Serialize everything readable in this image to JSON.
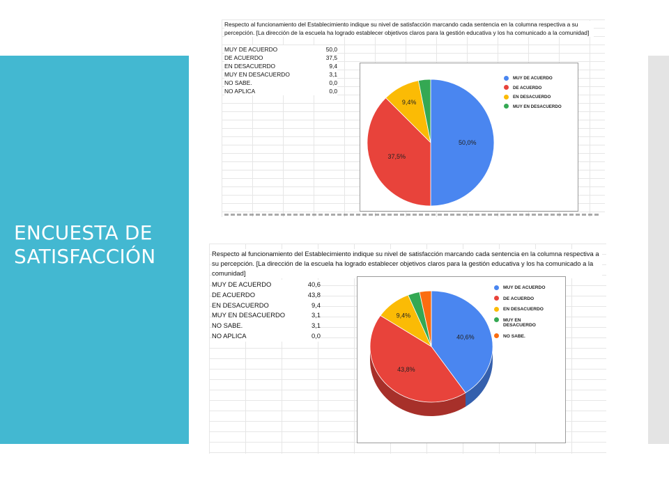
{
  "slide": {
    "title": "ENCUESTA DE SATISFACCIÓN",
    "accent_color": "#43b8d1"
  },
  "colors": {
    "muy_de_acuerdo": "#4a86f0",
    "de_acuerdo": "#e8433b",
    "en_desacuerdo": "#fbbb05",
    "muy_en_desacuerdo": "#34a853",
    "no_sabe": "#fb6d10"
  },
  "sheet1": {
    "question": "Respecto al funcionamiento del Establecimiento indique su nivel de satisfacción marcando cada sentencia en la columna respectiva a su percepción. [La dirección de la escuela ha logrado establecer objetivos claros para la gestión educativa y los ha comunicado a la comunidad]",
    "rows": [
      {
        "label": "MUY DE ACUERDO",
        "value": "50,0"
      },
      {
        "label": "DE ACUERDO",
        "value": "37,5"
      },
      {
        "label": "EN DESACUERDO",
        "value": "9,4"
      },
      {
        "label": "MUY EN DESACUERDO",
        "value": "3,1"
      },
      {
        "label": "NO SABE.",
        "value": "0,0"
      },
      {
        "label": "NO APLICA",
        "value": "0,0"
      }
    ],
    "legend": [
      "MUY DE ACUERDO",
      "DE ACUERDO",
      "EN DESACUERDO",
      "MUY EN DESACUERDO"
    ],
    "slice_labels": [
      "50,0%",
      "37,5%",
      "9,4%"
    ]
  },
  "sheet2": {
    "question": "Respecto al funcionamiento del Establecimiento indique su nivel de satisfacción marcando cada sentencia en la columna respectiva a su percepción. [La dirección de la escuela ha logrado establecer objetivos claros para la gestión educativa y los ha comunicado a la comunidad]",
    "rows": [
      {
        "label": "MUY DE ACUERDO",
        "value": "40,6"
      },
      {
        "label": "DE ACUERDO",
        "value": "43,8"
      },
      {
        "label": "EN DESACUERDO",
        "value": "9,4"
      },
      {
        "label": "MUY EN DESACUERDO",
        "value": "3,1"
      },
      {
        "label": "NO SABE.",
        "value": "3,1"
      },
      {
        "label": "NO APLICA",
        "value": "0,0"
      }
    ],
    "legend": [
      "MUY DE ACUERDO",
      "DE ACUERDO",
      "EN DESACUERDO",
      "MUY EN DESACUERDO",
      "NO SABE."
    ],
    "slice_labels": [
      "40,6%",
      "43,8%",
      "9,4%"
    ]
  },
  "chart_data": [
    {
      "type": "pie",
      "categories": [
        "MUY DE ACUERDO",
        "DE ACUERDO",
        "EN DESACUERDO",
        "MUY EN DESACUERDO"
      ],
      "values": [
        50.0,
        37.5,
        9.4,
        3.1
      ],
      "data_labels": [
        "50,0%",
        "37,5%",
        "9,4%",
        ""
      ],
      "legend_position": "right"
    },
    {
      "type": "pie",
      "style": "3d",
      "categories": [
        "MUY DE ACUERDO",
        "DE ACUERDO",
        "EN DESACUERDO",
        "MUY EN DESACUERDO",
        "NO SABE."
      ],
      "values": [
        40.6,
        43.8,
        9.4,
        3.1,
        3.1
      ],
      "data_labels": [
        "40,6%",
        "43,8%",
        "9,4%",
        "",
        ""
      ],
      "legend_position": "right"
    }
  ]
}
